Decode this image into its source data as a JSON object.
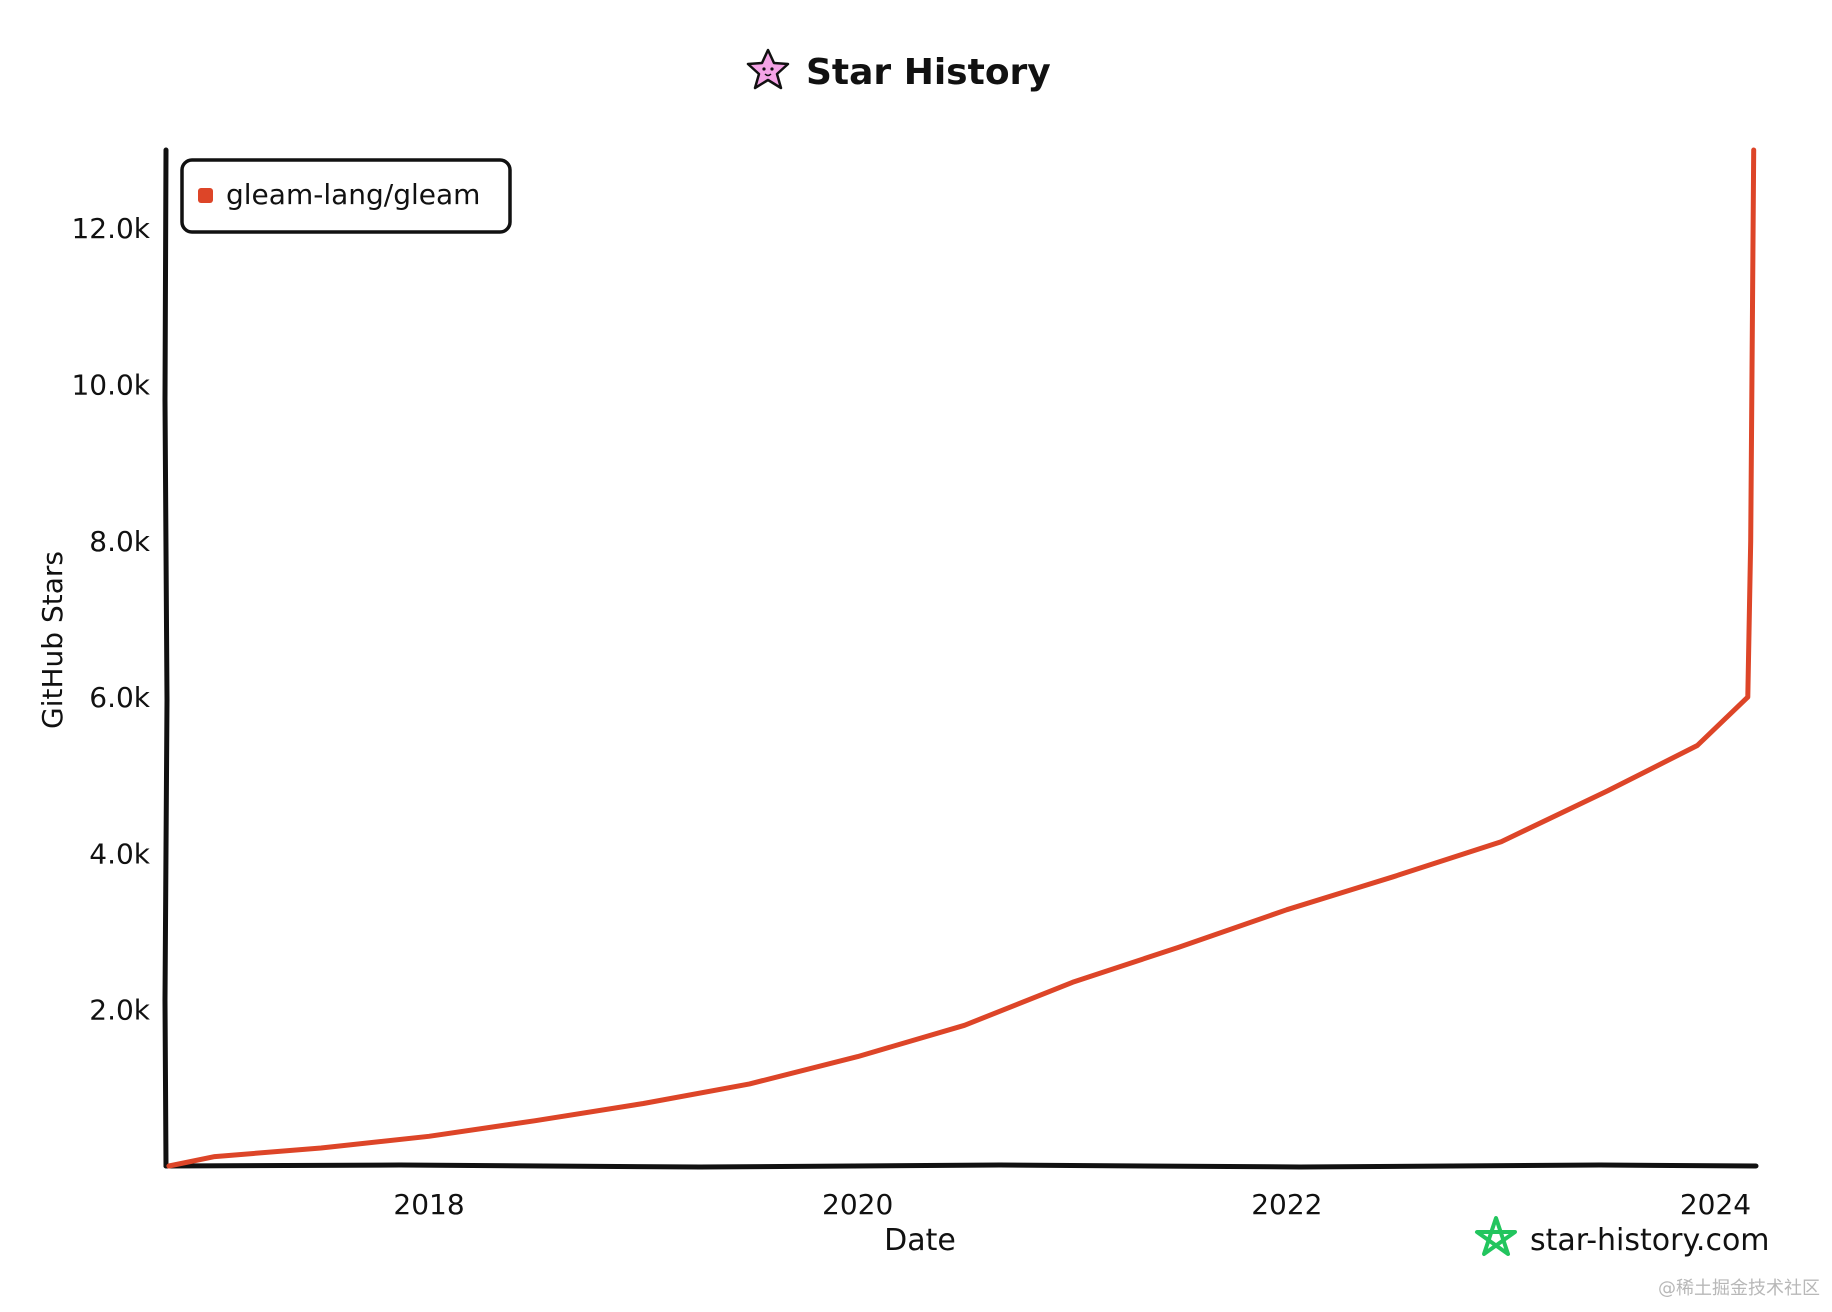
{
  "chart_data": {
    "type": "line",
    "title": "Star History",
    "xlabel": "Date",
    "ylabel": "GitHub Stars",
    "x_domain": [
      "2016-10-10",
      "2024-03-10"
    ],
    "ylim": [
      0,
      13000
    ],
    "x_ticks": [
      {
        "date": "2018-01-01",
        "label": "2018"
      },
      {
        "date": "2020-01-01",
        "label": "2020"
      },
      {
        "date": "2022-01-01",
        "label": "2022"
      },
      {
        "date": "2024-01-01",
        "label": "2024"
      }
    ],
    "y_ticks": [
      {
        "value": 2000,
        "label": "2.0k"
      },
      {
        "value": 4000,
        "label": "4.0k"
      },
      {
        "value": 6000,
        "label": "6.0k"
      },
      {
        "value": 8000,
        "label": "8.0k"
      },
      {
        "value": 10000,
        "label": "10.0k"
      },
      {
        "value": 12000,
        "label": "12.0k"
      }
    ],
    "legend_position": "top-left",
    "grid": false,
    "series": [
      {
        "name": "gleam-lang/gleam",
        "color": "#dd4528",
        "points": [
          {
            "x": "2016-10-15",
            "y": 0
          },
          {
            "x": "2017-01-01",
            "y": 120
          },
          {
            "x": "2017-07-01",
            "y": 230
          },
          {
            "x": "2018-01-01",
            "y": 380
          },
          {
            "x": "2018-07-01",
            "y": 580
          },
          {
            "x": "2019-01-01",
            "y": 800
          },
          {
            "x": "2019-07-01",
            "y": 1050
          },
          {
            "x": "2020-01-01",
            "y": 1400
          },
          {
            "x": "2020-07-01",
            "y": 1800
          },
          {
            "x": "2021-01-01",
            "y": 2350
          },
          {
            "x": "2021-07-01",
            "y": 2800
          },
          {
            "x": "2022-01-01",
            "y": 3280
          },
          {
            "x": "2022-07-01",
            "y": 3700
          },
          {
            "x": "2023-01-01",
            "y": 4150
          },
          {
            "x": "2023-07-01",
            "y": 4800
          },
          {
            "x": "2023-12-01",
            "y": 5380
          },
          {
            "x": "2024-02-25",
            "y": 6000
          },
          {
            "x": "2024-03-01",
            "y": 8000
          },
          {
            "x": "2024-03-04",
            "y": 11000
          },
          {
            "x": "2024-03-06",
            "y": 13000
          }
        ]
      }
    ]
  },
  "branding": {
    "title_icon": "star-face-icon",
    "logo_icon": "star-outline-logo-icon",
    "logo_text": "star-history.com",
    "logo_color": "#22c55e"
  },
  "watermark": "@稀土掘金技术社区"
}
